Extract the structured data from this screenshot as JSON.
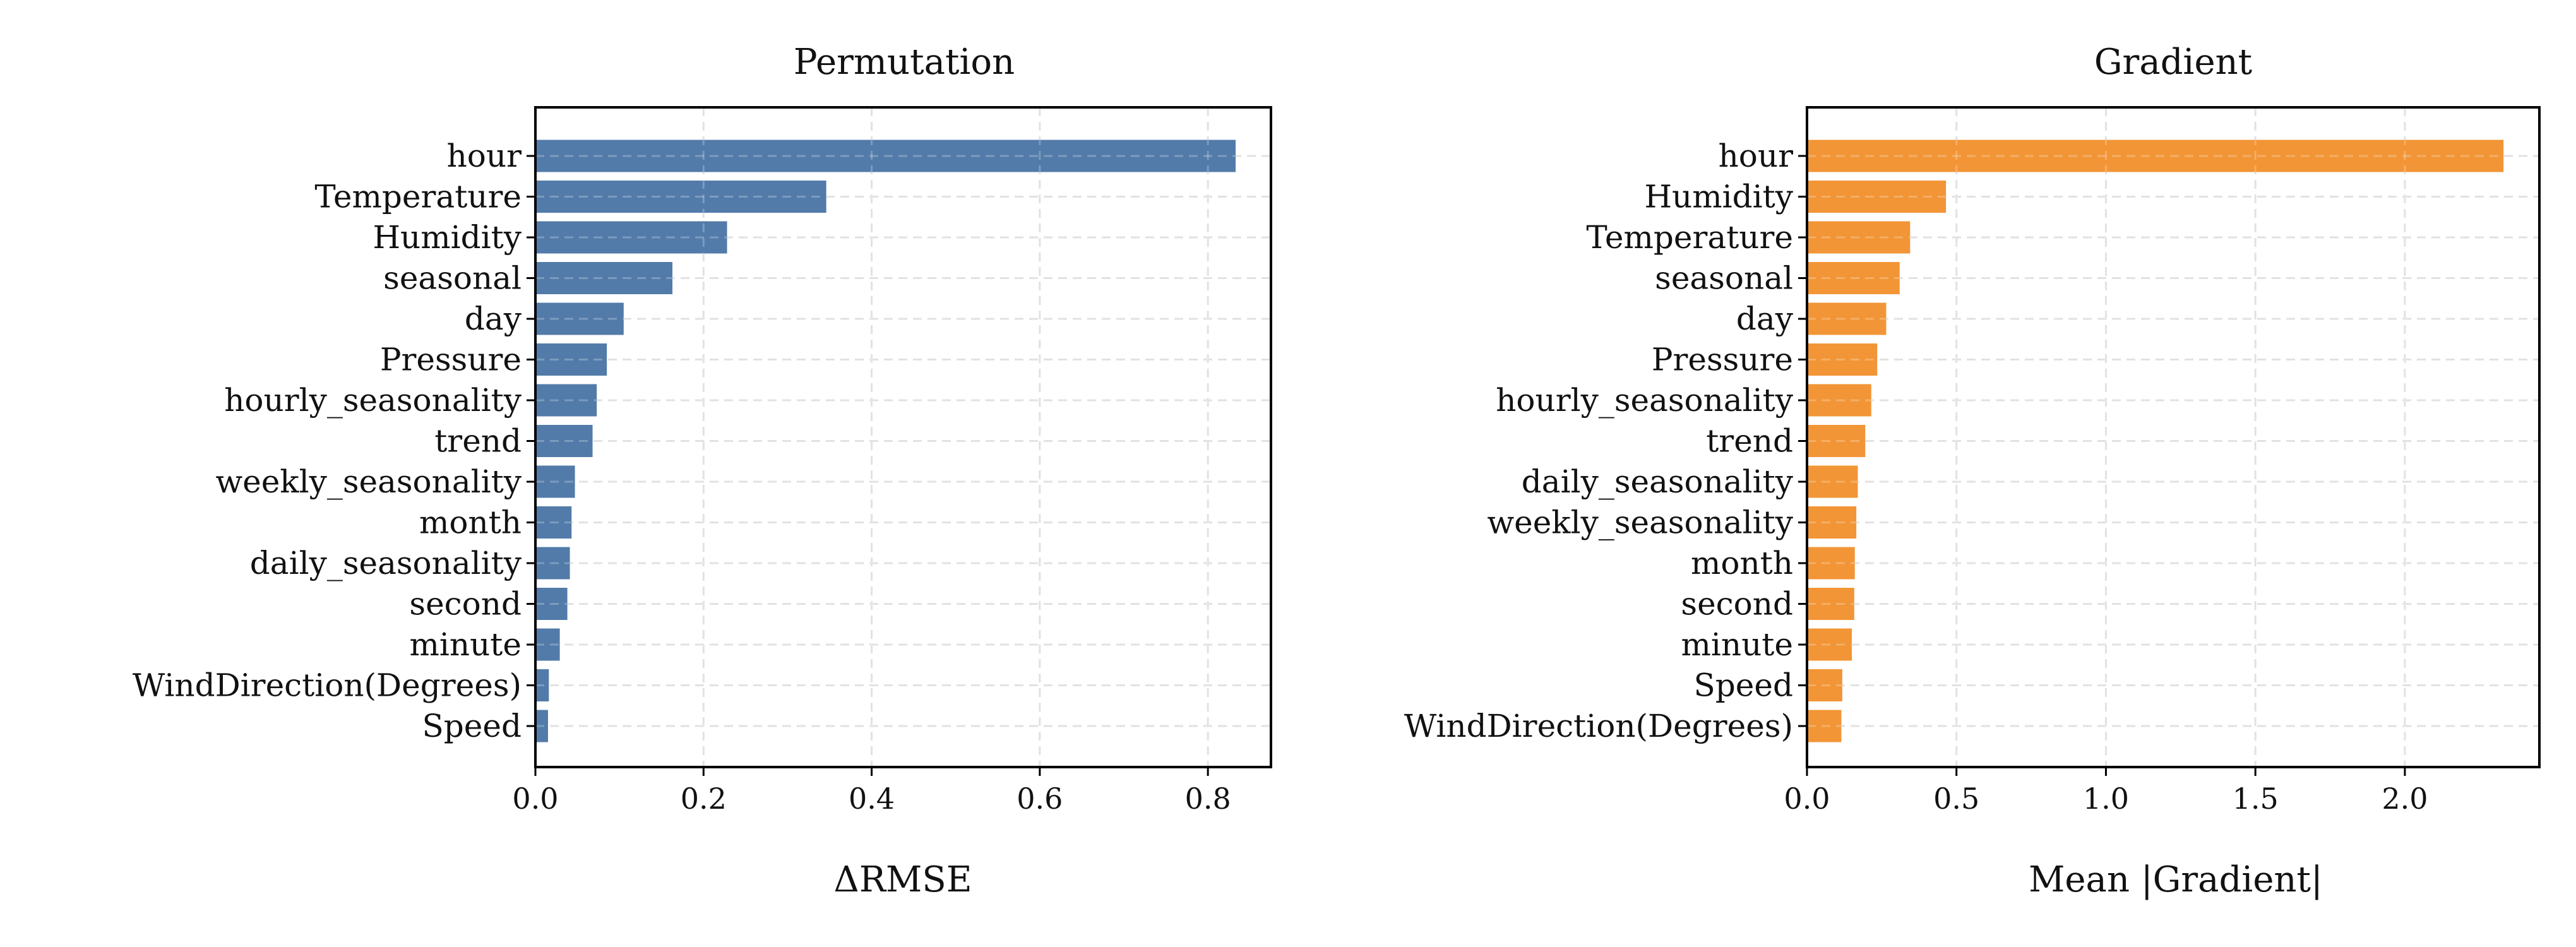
{
  "chart_data": [
    {
      "type": "bar",
      "orientation": "horizontal",
      "title": "Permutation",
      "xlabel": "ΔRMSE",
      "ylabel": "",
      "xlim": [
        0,
        0.875
      ],
      "xticks": [
        0.0,
        0.2,
        0.4,
        0.6,
        0.8
      ],
      "xtick_labels": [
        "0.0",
        "0.2",
        "0.4",
        "0.6",
        "0.8"
      ],
      "grid": true,
      "color": "#4c77a6",
      "categories": [
        "hour",
        "Temperature",
        "Humidity",
        "seasonal",
        "day",
        "Pressure",
        "hourly_seasonality",
        "trend",
        "weekly_seasonality",
        "month",
        "daily_seasonality",
        "second",
        "minute",
        "WindDirection(Degrees)",
        "Speed"
      ],
      "values": [
        0.833,
        0.346,
        0.228,
        0.163,
        0.105,
        0.085,
        0.073,
        0.068,
        0.047,
        0.043,
        0.041,
        0.038,
        0.029,
        0.016,
        0.015
      ]
    },
    {
      "type": "bar",
      "orientation": "horizontal",
      "title": "Gradient",
      "xlabel": "Mean |Gradient|",
      "ylabel": "",
      "xlim": [
        0,
        2.45
      ],
      "xticks": [
        0.0,
        0.5,
        1.0,
        1.5,
        2.0
      ],
      "xtick_labels": [
        "0.0",
        "0.5",
        "1.0",
        "1.5",
        "2.0"
      ],
      "grid": true,
      "color": "#f29230",
      "categories": [
        "hour",
        "Humidity",
        "Temperature",
        "seasonal",
        "day",
        "Pressure",
        "hourly_seasonality",
        "trend",
        "daily_seasonality",
        "weekly_seasonality",
        "month",
        "second",
        "minute",
        "Speed",
        "WindDirection(Degrees)"
      ],
      "values": [
        2.33,
        0.465,
        0.345,
        0.31,
        0.265,
        0.235,
        0.215,
        0.195,
        0.17,
        0.165,
        0.16,
        0.158,
        0.15,
        0.118,
        0.115
      ]
    }
  ]
}
